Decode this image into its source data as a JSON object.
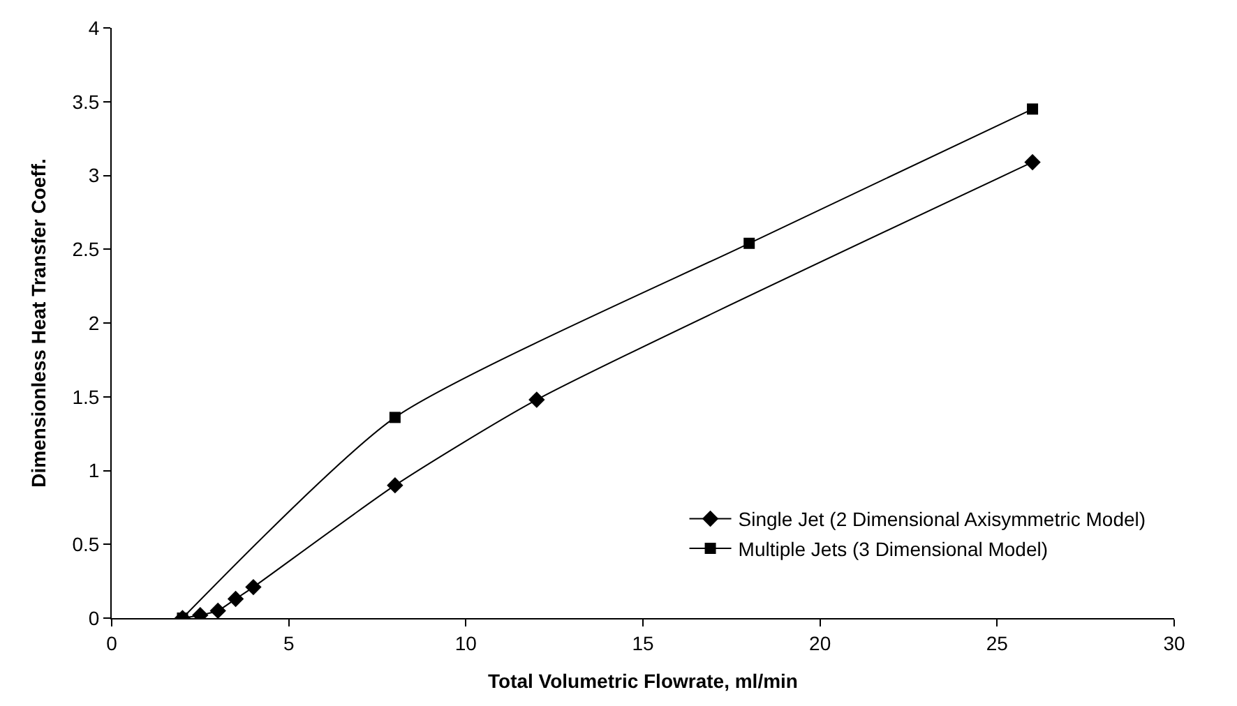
{
  "chart_data": {
    "type": "line",
    "xlabel": "Total Volumetric Flowrate, ml/min",
    "ylabel": "Dimensionless Heat Transfer Coeff.",
    "xlim": [
      0,
      30
    ],
    "xticks": [
      0,
      5,
      10,
      15,
      20,
      25,
      30
    ],
    "ylim": [
      0,
      4
    ],
    "yticks": [
      0,
      0.5,
      1,
      1.5,
      2,
      2.5,
      3,
      3.5,
      4
    ],
    "legend": "bottom right",
    "series": [
      {
        "name": "Single Jet (2 Dimensional Axisymmetric Model)",
        "color": "#000000",
        "marker": "diamond",
        "x": [
          2,
          2.5,
          3,
          3.5,
          4,
          8,
          12,
          26
        ],
        "values": [
          0,
          0.02,
          0.05,
          0.13,
          0.21,
          0.9,
          1.48,
          3.09
        ]
      },
      {
        "name": "Multiple Jets (3 Dimensional Model)",
        "color": "#000000",
        "marker": "square",
        "x": [
          2,
          8,
          18,
          26
        ],
        "values": [
          0,
          1.36,
          2.54,
          3.45
        ]
      }
    ]
  }
}
